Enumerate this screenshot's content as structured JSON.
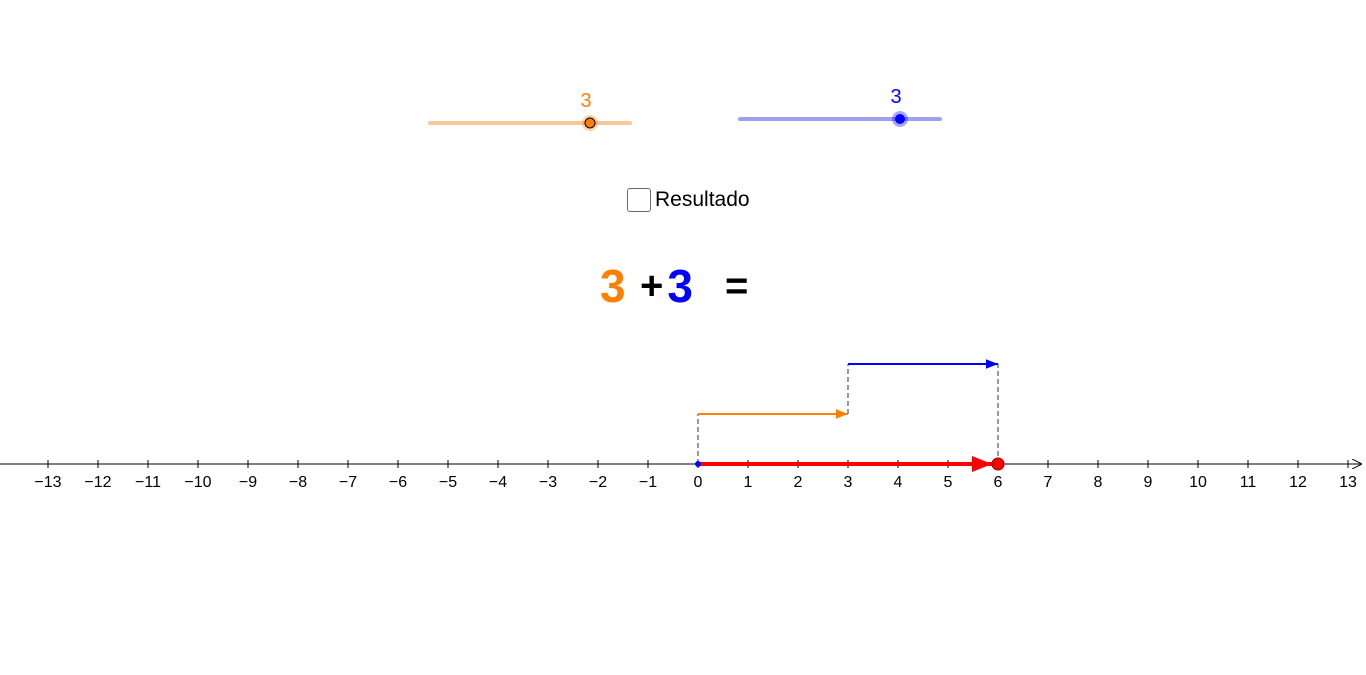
{
  "slider_a": {
    "value": "3",
    "value_num": 3,
    "min": -5,
    "max": 5,
    "color": "#ff7f00",
    "track_color": "#f9c79a"
  },
  "slider_b": {
    "value": "3",
    "value_num": 3,
    "min": -5,
    "max": 5,
    "color": "#0000ff",
    "track_color": "#9f9ff2"
  },
  "checkbox": {
    "label": "Resultado",
    "checked": false
  },
  "equation": {
    "a": "3",
    "plus": "+",
    "b": "3",
    "equals": "="
  },
  "number_line": {
    "ticks": [
      "−13",
      "−12",
      "−11",
      "−10",
      "−9",
      "−8",
      "−7",
      "−6",
      "−5",
      "−4",
      "−3",
      "−2",
      "−1",
      "0",
      "1",
      "2",
      "3",
      "4",
      "5",
      "6",
      "7",
      "8",
      "9",
      "10",
      "11",
      "12",
      "13"
    ],
    "range": [
      -13,
      13
    ],
    "vector_a": {
      "from": 0,
      "to": 3,
      "color": "#ff7f00"
    },
    "vector_b": {
      "from": 3,
      "to": 6,
      "color": "#0000ff"
    },
    "result": {
      "from": 0,
      "to": 6,
      "color": "#ff0000"
    }
  }
}
